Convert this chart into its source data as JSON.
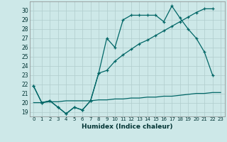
{
  "xlabel": "Humidex (Indice chaleur)",
  "background_color": "#cde8e8",
  "grid_color": "#b0cccc",
  "line_color": "#006666",
  "xlim": [
    -0.5,
    23.5
  ],
  "ylim": [
    18.5,
    31.0
  ],
  "yticks": [
    19,
    20,
    21,
    22,
    23,
    24,
    25,
    26,
    27,
    28,
    29,
    30
  ],
  "xticks": [
    0,
    1,
    2,
    3,
    4,
    5,
    6,
    7,
    8,
    9,
    10,
    11,
    12,
    13,
    14,
    15,
    16,
    17,
    18,
    19,
    20,
    21,
    22,
    23
  ],
  "series1_x": [
    0,
    1,
    2,
    3,
    4,
    5,
    6,
    7,
    8,
    9,
    10,
    11,
    12,
    13,
    14,
    15,
    16,
    17,
    18,
    19,
    20,
    21,
    22
  ],
  "series1_y": [
    21.8,
    20.0,
    20.2,
    19.5,
    18.8,
    19.5,
    19.2,
    20.2,
    23.2,
    27.0,
    26.0,
    29.0,
    29.5,
    29.5,
    29.5,
    29.5,
    28.8,
    30.5,
    29.2,
    28.0,
    27.0,
    25.5,
    23.0
  ],
  "series2_x": [
    0,
    1,
    2,
    3,
    4,
    5,
    6,
    7,
    8,
    9,
    10,
    11,
    12,
    13,
    14,
    15,
    16,
    17,
    18,
    19,
    20,
    21,
    22
  ],
  "series2_y": [
    21.8,
    20.0,
    20.2,
    19.5,
    18.8,
    19.5,
    19.2,
    20.2,
    23.2,
    23.5,
    24.5,
    25.2,
    25.8,
    26.4,
    26.8,
    27.3,
    27.8,
    28.3,
    28.8,
    29.3,
    29.8,
    30.2,
    30.2
  ],
  "series3_x": [
    0,
    1,
    2,
    3,
    4,
    5,
    6,
    7,
    8,
    9,
    10,
    11,
    12,
    13,
    14,
    15,
    16,
    17,
    18,
    19,
    20,
    21,
    22,
    23
  ],
  "series3_y": [
    20.0,
    20.0,
    20.1,
    20.1,
    20.2,
    20.2,
    20.2,
    20.2,
    20.3,
    20.3,
    20.4,
    20.4,
    20.5,
    20.5,
    20.6,
    20.6,
    20.7,
    20.7,
    20.8,
    20.9,
    21.0,
    21.0,
    21.1,
    21.1
  ]
}
